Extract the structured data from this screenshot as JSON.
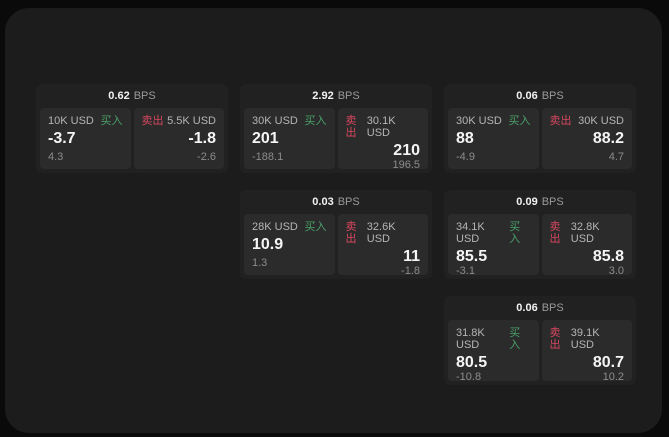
{
  "labels": {
    "bps": "BPS",
    "buy": "买入",
    "sell": "卖出"
  },
  "colors": {
    "page_background": "#0a0a0a",
    "panel_background": "#1c1c1c",
    "card_background": "#212121",
    "subcard_background": "#2b2b2b",
    "buy_green": "#4aa06a",
    "sell_red": "#d8475f"
  },
  "cards": [
    {
      "bps": "0.62",
      "buy": {
        "amount": "10K USD",
        "value": "-3.7",
        "sub": "4.3"
      },
      "sell": {
        "amount": "5.5K USD",
        "value": "-1.8",
        "sub": "-2.6"
      }
    },
    {
      "bps": "2.92",
      "buy": {
        "amount": "30K USD",
        "value": "201",
        "sub": "-188.1"
      },
      "sell": {
        "amount": "30.1K USD",
        "value": "210",
        "sub": "196.5"
      }
    },
    {
      "bps": "0.06",
      "buy": {
        "amount": "30K USD",
        "value": "88",
        "sub": "-4.9"
      },
      "sell": {
        "amount": "30K USD",
        "value": "88.2",
        "sub": "4.7"
      }
    },
    {
      "bps": "0.03",
      "buy": {
        "amount": "28K USD",
        "value": "10.9",
        "sub": "1.3"
      },
      "sell": {
        "amount": "32.6K USD",
        "value": "11",
        "sub": "-1.8"
      }
    },
    {
      "bps": "0.09",
      "buy": {
        "amount": "34.1K USD",
        "value": "85.5",
        "sub": "-3.1"
      },
      "sell": {
        "amount": "32.8K USD",
        "value": "85.8",
        "sub": "3.0"
      }
    },
    {
      "bps": "0.06",
      "buy": {
        "amount": "31.8K USD",
        "value": "80.5",
        "sub": "-10.8"
      },
      "sell": {
        "amount": "39.1K USD",
        "value": "80.7",
        "sub": "10.2"
      }
    }
  ]
}
